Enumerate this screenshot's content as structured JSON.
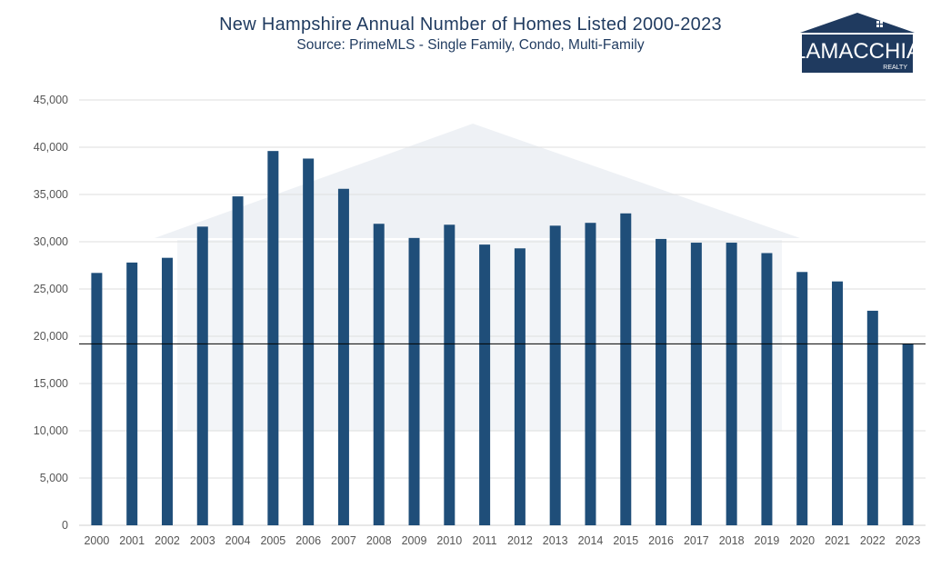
{
  "header": {
    "title": "New Hampshire Annual Number of Homes Listed 2000-2023",
    "subtitle": "Source: PrimeMLS - Single Family, Condo, Multi-Family"
  },
  "logo": {
    "name": "LAMACCHIA",
    "tagline": "REALTY",
    "color": "#1f3a5f"
  },
  "chart_data": {
    "type": "bar",
    "categories": [
      "2000",
      "2001",
      "2002",
      "2003",
      "2004",
      "2005",
      "2006",
      "2007",
      "2008",
      "2009",
      "2010",
      "2011",
      "2012",
      "2013",
      "2014",
      "2015",
      "2016",
      "2017",
      "2018",
      "2019",
      "2020",
      "2021",
      "2022",
      "2023"
    ],
    "values": [
      26700,
      27800,
      28300,
      31600,
      34800,
      39600,
      38800,
      35600,
      31900,
      30400,
      31800,
      29700,
      29300,
      31700,
      32000,
      33000,
      30300,
      29900,
      29900,
      28800,
      26800,
      25800,
      22700,
      19200
    ],
    "ylim": [
      0,
      45000
    ],
    "yticks": [
      0,
      5000,
      10000,
      15000,
      20000,
      25000,
      30000,
      35000,
      40000,
      45000
    ],
    "ytick_labels": [
      "0",
      "5,000",
      "10,000",
      "15,000",
      "20,000",
      "25,000",
      "30,000",
      "35,000",
      "40,000",
      "45,000"
    ],
    "reference_line": 19200,
    "bar_color": "#1f4e79",
    "grid": true
  }
}
